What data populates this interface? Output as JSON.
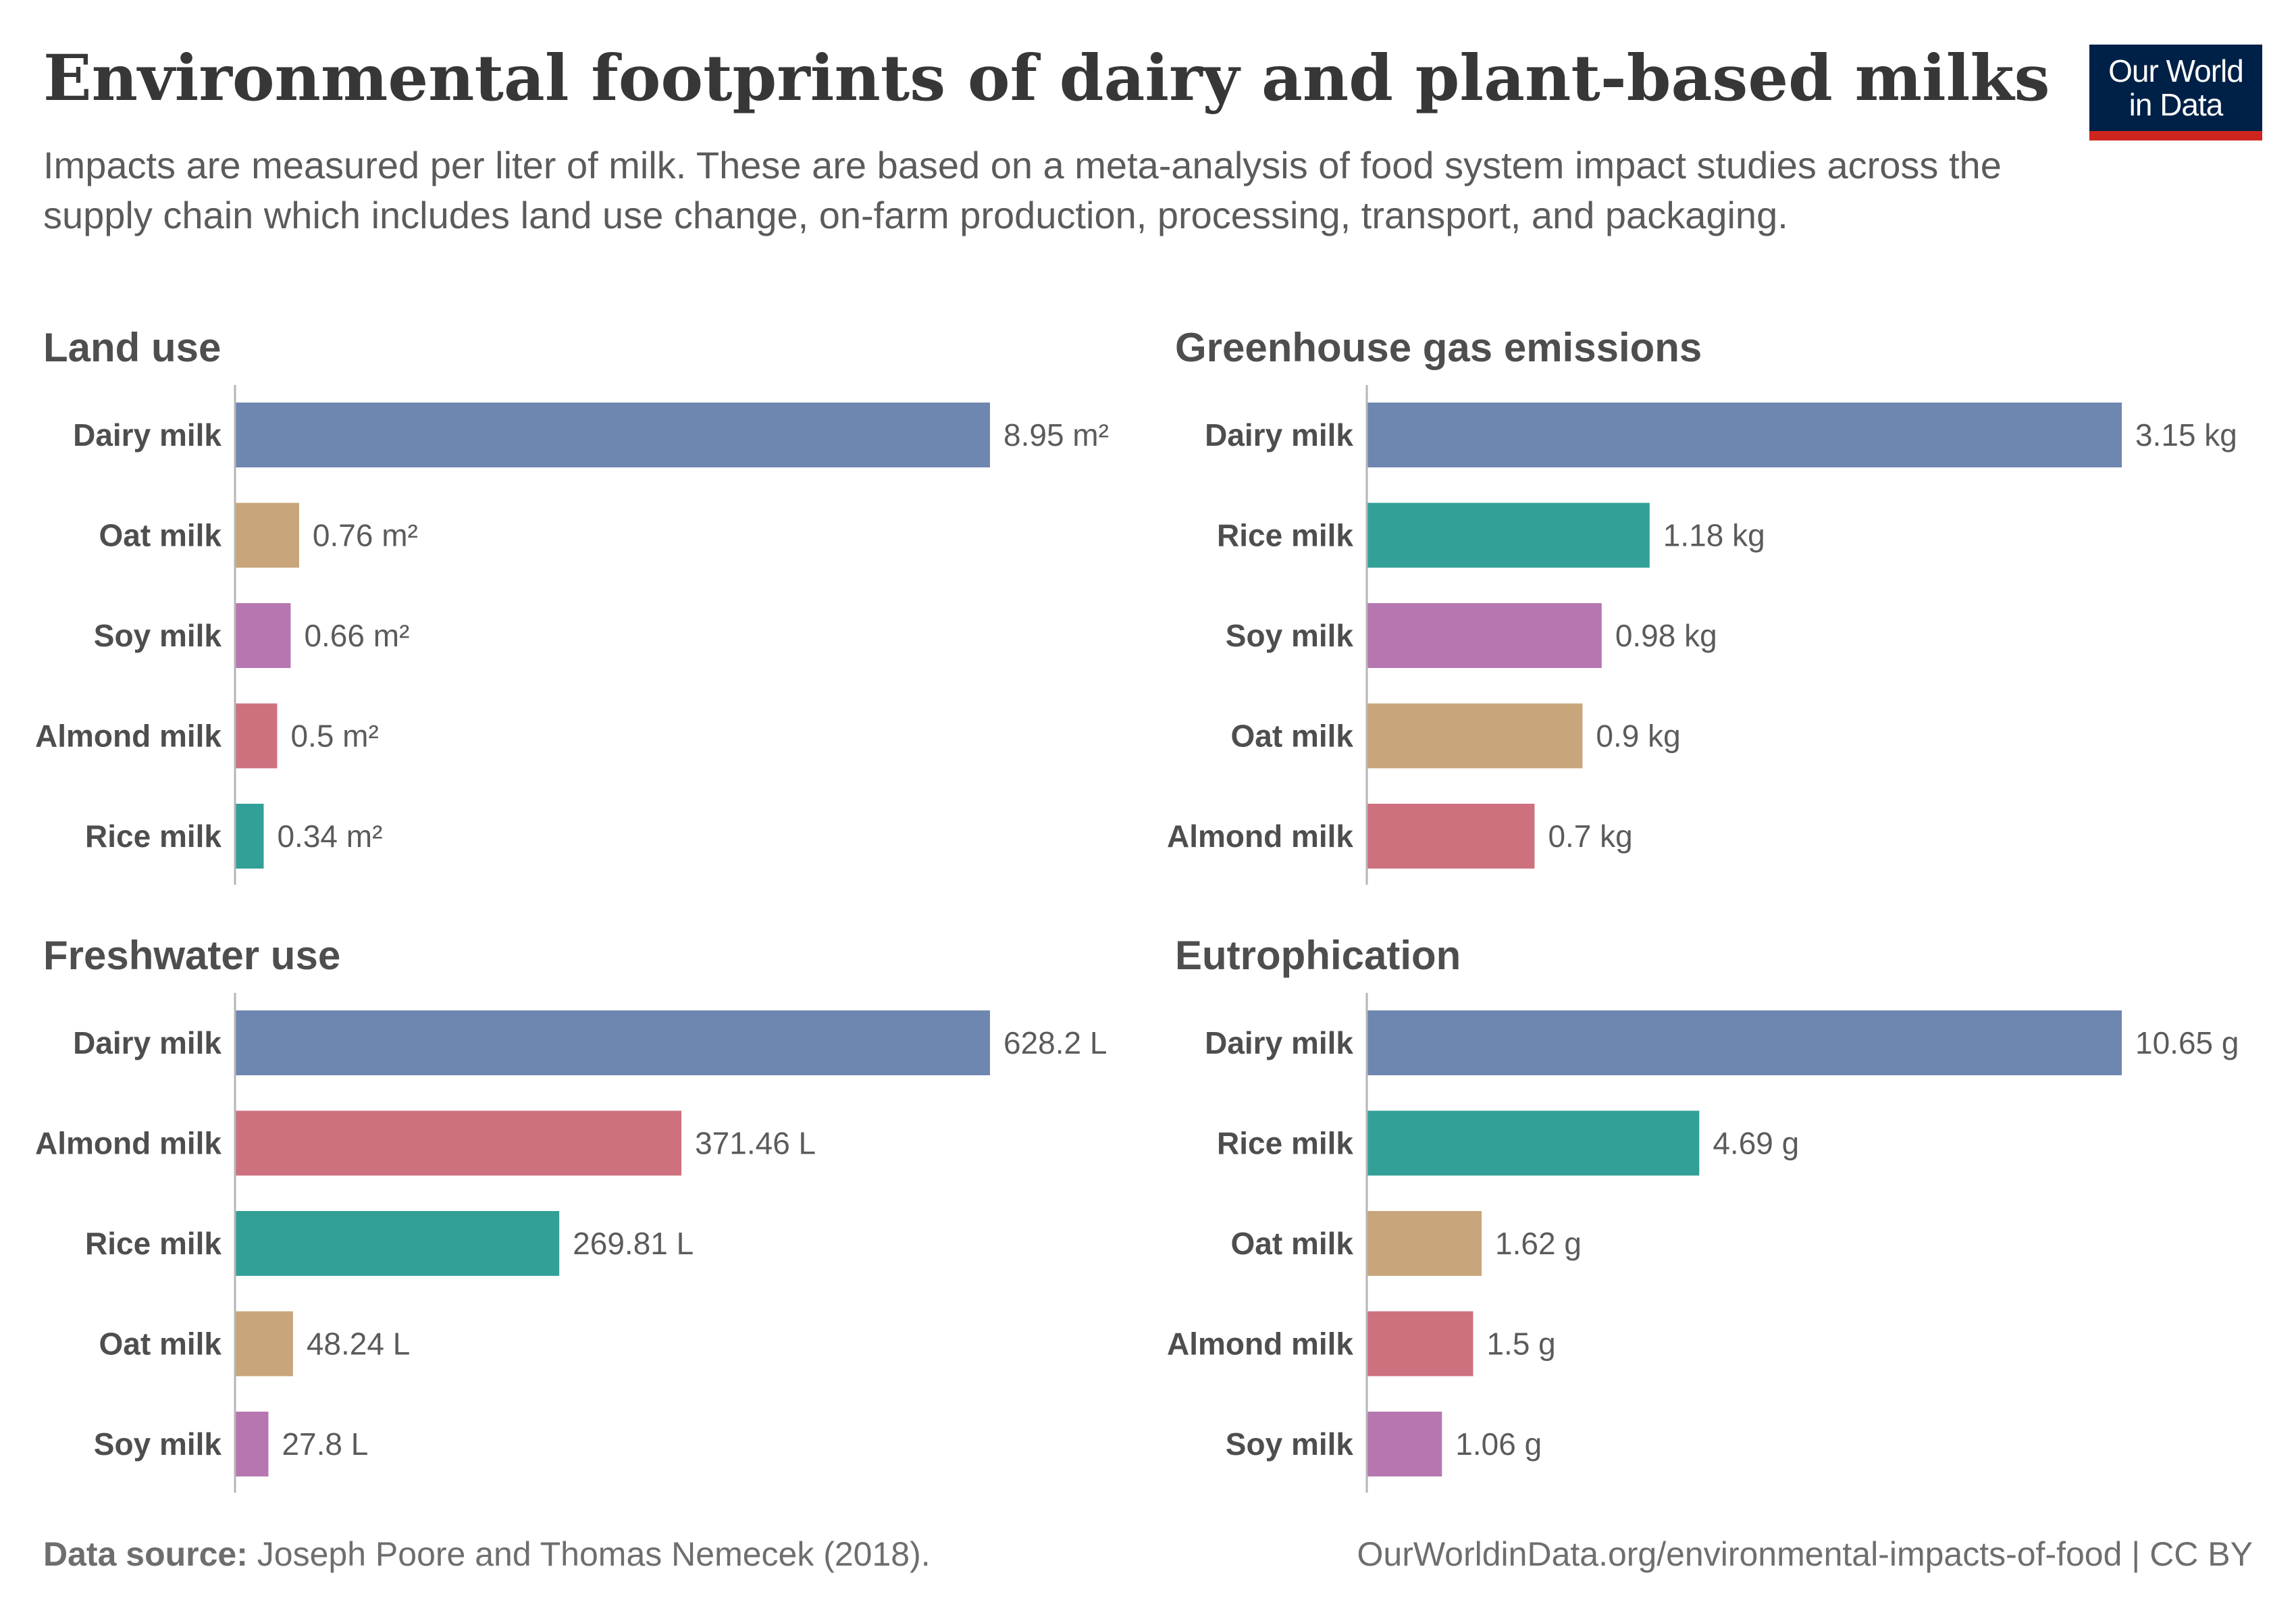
{
  "header": {
    "title": "Environmental footprints of dairy and plant-based milks",
    "subtitle": "Impacts are measured per liter of milk. These are based on a meta-analysis of food system impact studies across the supply chain which includes land use change, on-farm production, processing, transport, and packaging."
  },
  "logo": {
    "line1": "Our World",
    "line2": "in Data"
  },
  "footer": {
    "source_label": "Data source:",
    "source_text": "Joseph Poore and Thomas Nemecek (2018).",
    "url_license": "OurWorldinData.org/environmental-impacts-of-food | CC BY"
  },
  "colors": {
    "Dairy milk": "#6e87b0",
    "Oat milk": "#c8a57a",
    "Soy milk": "#b677b1",
    "Almond milk": "#cd717f",
    "Rice milk": "#33a097"
  },
  "chart_data": [
    {
      "type": "bar",
      "title": "Land use",
      "unit": "m²",
      "categories": [
        "Dairy milk",
        "Oat milk",
        "Soy milk",
        "Almond milk",
        "Rice milk"
      ],
      "values": [
        8.95,
        0.76,
        0.66,
        0.5,
        0.34
      ],
      "labels": [
        "8.95 m²",
        "0.76 m²",
        "0.66 m²",
        "0.5 m²",
        "0.34 m²"
      ]
    },
    {
      "type": "bar",
      "title": "Greenhouse gas emissions",
      "unit": "kg",
      "categories": [
        "Dairy milk",
        "Rice milk",
        "Soy milk",
        "Oat milk",
        "Almond milk"
      ],
      "values": [
        3.15,
        1.18,
        0.98,
        0.9,
        0.7
      ],
      "labels": [
        "3.15 kg",
        "1.18 kg",
        "0.98 kg",
        "0.9 kg",
        "0.7 kg"
      ]
    },
    {
      "type": "bar",
      "title": "Freshwater use",
      "unit": "L",
      "categories": [
        "Dairy milk",
        "Almond milk",
        "Rice milk",
        "Oat milk",
        "Soy milk"
      ],
      "values": [
        628.2,
        371.46,
        269.81,
        48.24,
        27.8
      ],
      "labels": [
        "628.2 L",
        "371.46 L",
        "269.81 L",
        "48.24 L",
        "27.8 L"
      ]
    },
    {
      "type": "bar",
      "title": "Eutrophication",
      "unit": "g",
      "categories": [
        "Dairy milk",
        "Rice milk",
        "Oat milk",
        "Almond milk",
        "Soy milk"
      ],
      "values": [
        10.65,
        4.69,
        1.62,
        1.5,
        1.06
      ],
      "labels": [
        "10.65 g",
        "4.69 g",
        "1.62 g",
        "1.5 g",
        "1.06 g"
      ]
    }
  ]
}
